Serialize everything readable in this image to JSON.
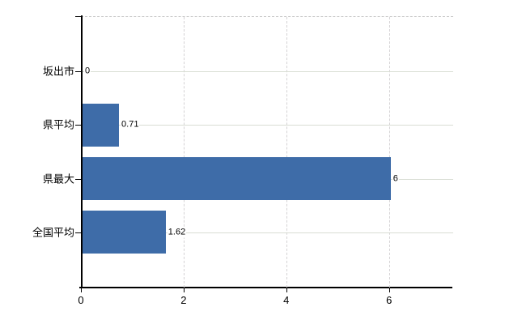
{
  "chart_data": {
    "type": "bar",
    "orientation": "horizontal",
    "title": "",
    "xlabel": "",
    "ylabel": "",
    "categories": [
      "坂出市",
      "県平均",
      "県最大",
      "全国平均"
    ],
    "values": [
      0,
      0.71,
      6,
      1.62
    ],
    "value_labels": [
      "0",
      "0.71",
      "6",
      "1.62"
    ],
    "x_ticks": [
      0,
      2,
      4,
      6
    ],
    "x_tick_labels": [
      "0",
      "2",
      "4",
      "6"
    ],
    "xlim": [
      0,
      7.25
    ],
    "grid": true,
    "legend": false
  },
  "colors": {
    "bar": "#3e6ca8",
    "axis": "#000000",
    "h_gridline": "#d9ded4",
    "v_gridline": "#d4d2d4",
    "top_border": "#c6c6c6",
    "text": "#000000",
    "background": "#ffffff"
  }
}
